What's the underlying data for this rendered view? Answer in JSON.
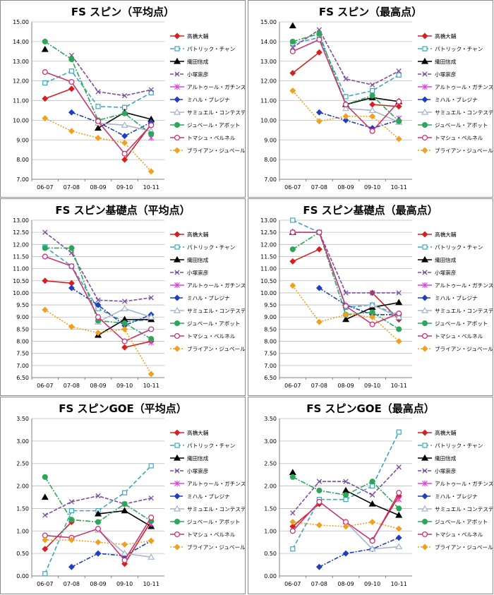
{
  "colors": {
    "takahashi": "#d62020",
    "chan": "#38a8c0",
    "oda": "#000000",
    "kozuka": "#7b4f9d",
    "gachinski": "#e040e0",
    "alexandru": "#1f3fbf",
    "contesti": "#a6b4cc",
    "joubert": "#2ea659",
    "verner": "#cc3377",
    "joubert_b": "#f0a020"
  },
  "chart_data": [
    {
      "type": "line",
      "title": "FS スピン（平均点）",
      "categories": [
        "06-07",
        "07-08",
        "08-09",
        "09-10",
        "10-11"
      ],
      "ylim": [
        7.0,
        15.0
      ],
      "yticks": [
        "7.00",
        "8.00",
        "9.00",
        "10.00",
        "11.00",
        "12.00",
        "13.00",
        "14.00",
        "15.00"
      ],
      "series": [
        {
          "key": "takahashi",
          "name": "高橋大輔",
          "values": [
            11.1,
            11.6,
            null,
            8.0,
            9.8
          ]
        },
        {
          "key": "chan",
          "name": "パトリック・チャン",
          "values": [
            11.9,
            12.5,
            10.7,
            10.65,
            11.4
          ]
        },
        {
          "key": "oda",
          "name": "織田信成",
          "values": [
            13.6,
            null,
            9.6,
            10.4,
            10.05
          ]
        },
        {
          "key": "kozuka",
          "name": "小塚崇彦",
          "values": [
            null,
            13.3,
            11.45,
            11.25,
            11.55
          ]
        },
        {
          "key": "gachinski",
          "name": "アルトゥール・ガチンスキー",
          "values": [
            null,
            null,
            null,
            null,
            9.1
          ]
        },
        {
          "key": "alexandru",
          "name": "ミハル・ブレジナ",
          "values": [
            null,
            10.4,
            9.9,
            9.2,
            9.9
          ]
        },
        {
          "key": "contesti",
          "name": "サミュエル・コンテスティ",
          "values": [
            null,
            null,
            9.85,
            9.75,
            9.45
          ]
        },
        {
          "key": "joubert",
          "name": "ジュベール・アボット",
          "values": [
            14.0,
            13.1,
            10.0,
            10.35,
            9.3
          ]
        },
        {
          "key": "verner",
          "name": "トマシュ・ベルネル",
          "values": [
            12.45,
            11.95,
            9.95,
            8.3,
            9.75
          ]
        },
        {
          "key": "joubert_b",
          "name": "ブライアン・ジュベール",
          "values": [
            10.1,
            9.45,
            9.1,
            8.85,
            7.4
          ]
        }
      ]
    },
    {
      "type": "line",
      "title": "FS スピン（最高点）",
      "categories": [
        "06-07",
        "07-08",
        "08-09",
        "09-10",
        "10-11"
      ],
      "ylim": [
        7.0,
        15.0
      ],
      "yticks": [
        "7.00",
        "8.00",
        "9.00",
        "10.00",
        "11.00",
        "12.00",
        "13.00",
        "14.00",
        "15.00"
      ],
      "series": [
        {
          "key": "takahashi",
          "name": "高橋大輔",
          "values": [
            12.4,
            13.45,
            null,
            10.8,
            10.7
          ]
        },
        {
          "key": "chan",
          "name": "パトリック・チャン",
          "values": [
            13.9,
            14.2,
            11.2,
            11.5,
            12.3
          ]
        },
        {
          "key": "oda",
          "name": "織田信成",
          "values": [
            14.8,
            null,
            10.8,
            11.15,
            10.95
          ]
        },
        {
          "key": "kozuka",
          "name": "小塚崇彦",
          "values": [
            13.7,
            14.6,
            12.1,
            11.8,
            12.5
          ]
        },
        {
          "key": "gachinski",
          "name": "アルトゥール・ガチンスキー",
          "values": [
            null,
            null,
            null,
            null,
            10.1
          ]
        },
        {
          "key": "alexandru",
          "name": "ミハル・ブレジナ",
          "values": [
            null,
            10.4,
            10.0,
            9.6,
            10.0
          ]
        },
        {
          "key": "contesti",
          "name": "サミュエル・コンテスティ",
          "values": [
            null,
            null,
            10.6,
            10.5,
            9.9
          ]
        },
        {
          "key": "joubert",
          "name": "ジュベール・アボット",
          "values": [
            14.0,
            14.4,
            10.8,
            11.25,
            9.95
          ]
        },
        {
          "key": "verner",
          "name": "トマシュ・ベルネル",
          "values": [
            13.5,
            14.1,
            10.8,
            9.45,
            10.95
          ]
        },
        {
          "key": "joubert_b",
          "name": "ブライアン・ジュベール",
          "values": [
            11.5,
            9.95,
            10.2,
            10.2,
            9.05
          ]
        }
      ]
    },
    {
      "type": "line",
      "title": "FS スピン基礎点（平均点）",
      "categories": [
        "06-07",
        "07-08",
        "08-09",
        "09-10",
        "10-11"
      ],
      "ylim": [
        6.5,
        13.0
      ],
      "yticks": [
        "6.50",
        "7.00",
        "7.50",
        "8.00",
        "8.50",
        "9.00",
        "9.50",
        "10.00",
        "10.50",
        "11.00",
        "11.50",
        "12.00",
        "12.50",
        "13.00"
      ],
      "series": [
        {
          "key": "takahashi",
          "name": "高橋大輔",
          "values": [
            10.5,
            10.4,
            null,
            7.75,
            8.0
          ]
        },
        {
          "key": "chan",
          "name": "パトリック・チャン",
          "values": [
            11.9,
            11.1,
            9.35,
            8.8,
            8.9
          ]
        },
        {
          "key": "oda",
          "name": "織田信成",
          "values": [
            null,
            null,
            8.25,
            8.9,
            8.9
          ]
        },
        {
          "key": "kozuka",
          "name": "小塚崇彦",
          "values": [
            12.5,
            11.65,
            9.7,
            9.65,
            9.8
          ]
        },
        {
          "key": "gachinski",
          "name": "アルトゥール・ガチンスキー",
          "values": [
            null,
            null,
            null,
            null,
            7.95
          ]
        },
        {
          "key": "alexandru",
          "name": "ミハル・ブレジナ",
          "values": [
            null,
            10.2,
            9.5,
            8.65,
            9.1
          ]
        },
        {
          "key": "contesti",
          "name": "サミュエル・コンテスティ",
          "values": [
            null,
            null,
            8.8,
            9.35,
            9.0
          ]
        },
        {
          "key": "joubert",
          "name": "ジュベール・アボット",
          "values": [
            11.85,
            11.85,
            8.85,
            8.75,
            8.1
          ]
        },
        {
          "key": "verner",
          "name": "トマシュ・ベルネル",
          "values": [
            11.5,
            11.1,
            9.0,
            8.0,
            8.5
          ]
        },
        {
          "key": "joubert_b",
          "name": "ブライアン・ジュベール",
          "values": [
            9.3,
            8.6,
            8.35,
            8.5,
            6.65
          ]
        }
      ]
    },
    {
      "type": "line",
      "title": "FS スピン基礎点（最高点）",
      "categories": [
        "06-07",
        "07-08",
        "08-09",
        "09-10",
        "10-11"
      ],
      "ylim": [
        6.5,
        13.0
      ],
      "yticks": [
        "6.50",
        "7.00",
        "7.50",
        "8.00",
        "8.50",
        "9.00",
        "9.50",
        "10.00",
        "10.50",
        "11.00",
        "11.50",
        "12.00",
        "12.50",
        "13.00"
      ],
      "series": [
        {
          "key": "takahashi",
          "name": "高橋大輔",
          "values": [
            11.3,
            11.8,
            null,
            10.0,
            8.9
          ]
        },
        {
          "key": "chan",
          "name": "パトリック・チャン",
          "values": [
            13.0,
            12.5,
            9.4,
            9.5,
            9.1
          ]
        },
        {
          "key": "oda",
          "name": "織田信成",
          "values": [
            12.5,
            null,
            8.9,
            9.4,
            9.6
          ]
        },
        {
          "key": "kozuka",
          "name": "小塚崇彦",
          "values": [
            12.5,
            12.5,
            10.0,
            10.0,
            10.0
          ]
        },
        {
          "key": "gachinski",
          "name": "アルトゥール・ガチンスキー",
          "values": [
            null,
            null,
            null,
            null,
            9.0
          ]
        },
        {
          "key": "alexandru",
          "name": "ミハル・ブレジナ",
          "values": [
            null,
            10.2,
            9.5,
            9.1,
            9.1
          ]
        },
        {
          "key": "contesti",
          "name": "サミュエル・コンテスティ",
          "values": [
            null,
            null,
            9.5,
            9.5,
            9.0
          ]
        },
        {
          "key": "joubert",
          "name": "ジュベール・アボット",
          "values": [
            11.8,
            12.5,
            9.1,
            9.2,
            8.5
          ]
        },
        {
          "key": "verner",
          "name": "トマシュ・ベルネル",
          "values": [
            12.5,
            12.5,
            9.45,
            8.7,
            9.15
          ]
        },
        {
          "key": "joubert_b",
          "name": "ブライアン・ジュベール",
          "values": [
            10.3,
            8.8,
            9.1,
            9.0,
            8.0
          ]
        }
      ]
    },
    {
      "type": "line",
      "title": "FS スピンGOE（平均点）",
      "categories": [
        "06-07",
        "07-08",
        "08-09",
        "09-10",
        "10-11"
      ],
      "ylim": [
        0.0,
        3.5
      ],
      "yticks": [
        "0.00",
        "0.50",
        "1.00",
        "1.50",
        "2.00",
        "2.50",
        "3.00",
        "3.50"
      ],
      "series": [
        {
          "key": "takahashi",
          "name": "高橋大輔",
          "values": [
            0.6,
            1.2,
            null,
            0.27,
            1.22
          ]
        },
        {
          "key": "chan",
          "name": "パトリック・チャン",
          "values": [
            0.05,
            1.45,
            1.45,
            1.85,
            2.45
          ]
        },
        {
          "key": "oda",
          "name": "織田信成",
          "values": [
            1.75,
            null,
            1.38,
            1.45,
            1.1
          ]
        },
        {
          "key": "kozuka",
          "name": "小塚崇彦",
          "values": [
            1.35,
            1.65,
            1.78,
            1.6,
            1.73
          ]
        },
        {
          "key": "gachinski",
          "name": "アルトゥール・ガチンスキー",
          "values": [
            null,
            null,
            null,
            null,
            1.15
          ]
        },
        {
          "key": "alexandru",
          "name": "ミハル・ブレジナ",
          "values": [
            null,
            0.2,
            0.5,
            0.45,
            0.78
          ]
        },
        {
          "key": "contesti",
          "name": "サミュエル・コンテスティ",
          "values": [
            null,
            null,
            1.02,
            0.5,
            0.42
          ]
        },
        {
          "key": "joubert",
          "name": "ジュベール・アボット",
          "values": [
            2.2,
            1.25,
            1.2,
            1.6,
            1.22
          ]
        },
        {
          "key": "verner",
          "name": "トマシュ・ベルネル",
          "values": [
            0.9,
            0.85,
            1.05,
            0.35,
            1.3
          ]
        },
        {
          "key": "joubert_b",
          "name": "ブライアン・ジュベール",
          "values": [
            0.8,
            0.8,
            0.75,
            0.7,
            0.78
          ]
        }
      ]
    },
    {
      "type": "line",
      "title": "FS スピンGOE（最高点）",
      "categories": [
        "06-07",
        "07-08",
        "08-09",
        "09-10",
        "10-11"
      ],
      "ylim": [
        0.0,
        3.5
      ],
      "yticks": [
        "0.00",
        "0.50",
        "1.00",
        "1.50",
        "2.00",
        "2.50",
        "3.00",
        "3.50"
      ],
      "series": [
        {
          "key": "takahashi",
          "name": "高橋大輔",
          "values": [
            1.1,
            1.6,
            null,
            0.8,
            1.78
          ]
        },
        {
          "key": "chan",
          "name": "パトリック・チャン",
          "values": [
            0.6,
            1.7,
            1.7,
            2.0,
            3.2
          ]
        },
        {
          "key": "oda",
          "name": "織田信成",
          "values": [
            2.3,
            null,
            1.9,
            1.6,
            1.35
          ]
        },
        {
          "key": "kozuka",
          "name": "小塚崇彦",
          "values": [
            1.4,
            2.1,
            2.1,
            1.8,
            2.42
          ]
        },
        {
          "key": "gachinski",
          "name": "アルトゥール・ガチンスキー",
          "values": [
            null,
            null,
            null,
            null,
            1.7
          ]
        },
        {
          "key": "alexandru",
          "name": "ミハル・ブレジナ",
          "values": [
            null,
            0.2,
            0.5,
            0.6,
            0.85
          ]
        },
        {
          "key": "contesti",
          "name": "サミュエル・コンテスティ",
          "values": [
            null,
            null,
            1.2,
            0.6,
            0.65
          ]
        },
        {
          "key": "joubert",
          "name": "ジュベール・アボット",
          "values": [
            2.2,
            1.9,
            1.8,
            2.1,
            1.5
          ]
        },
        {
          "key": "verner",
          "name": "トマシュ・ベルネル",
          "values": [
            1.0,
            1.65,
            1.2,
            0.78,
            1.85
          ]
        },
        {
          "key": "joubert_b",
          "name": "ブライアン・ジュベール",
          "values": [
            1.2,
            1.13,
            1.1,
            1.2,
            1.05
          ]
        }
      ]
    }
  ]
}
